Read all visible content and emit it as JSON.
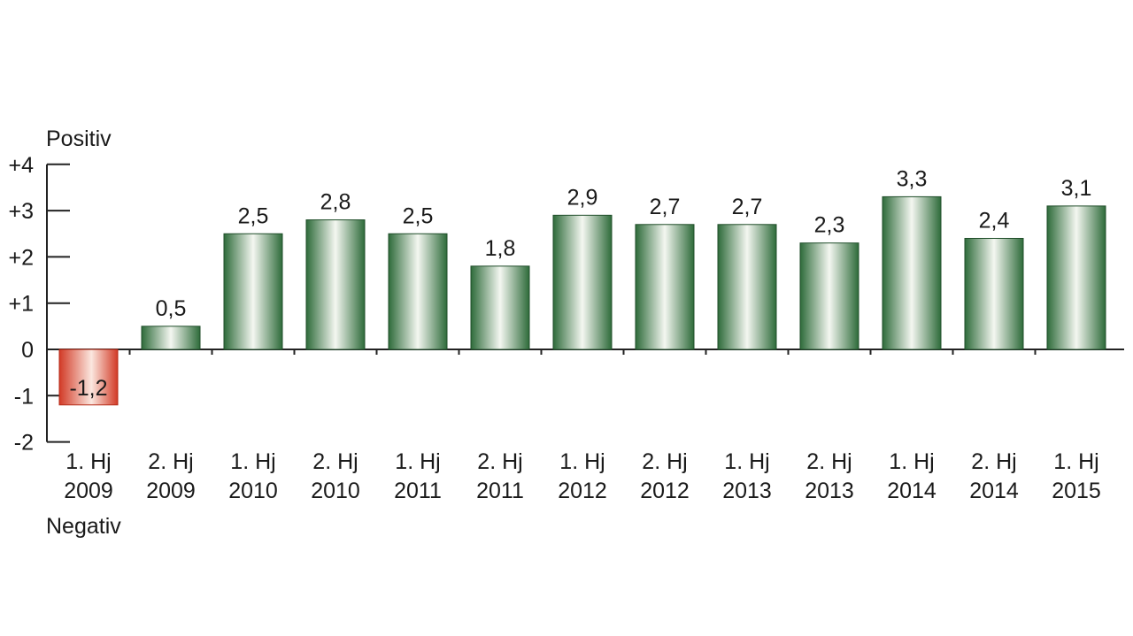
{
  "chart_data": {
    "type": "bar",
    "title": "",
    "xlabel": "",
    "ylabel_top": "Positiv",
    "ylabel_bottom": "Negativ",
    "ylim": [
      -2,
      4
    ],
    "yticks": [
      4,
      3,
      2,
      1,
      0,
      -1,
      -2
    ],
    "ytick_labels": [
      "+4",
      "+3",
      "+2",
      "+1",
      "0",
      "-1",
      "-2"
    ],
    "categories": [
      [
        "1. Hj",
        "2009"
      ],
      [
        "2. Hj",
        "2009"
      ],
      [
        "1. Hj",
        "2010"
      ],
      [
        "2. Hj",
        "2010"
      ],
      [
        "1. Hj",
        "2011"
      ],
      [
        "2. Hj",
        "2011"
      ],
      [
        "1. Hj",
        "2012"
      ],
      [
        "2. Hj",
        "2012"
      ],
      [
        "1. Hj",
        "2013"
      ],
      [
        "2. Hj",
        "2013"
      ],
      [
        "1. Hj",
        "2014"
      ],
      [
        "2. Hj",
        "2014"
      ],
      [
        "1. Hj",
        "2015"
      ]
    ],
    "values": [
      -1.2,
      0.5,
      2.5,
      2.8,
      2.5,
      1.8,
      2.9,
      2.7,
      2.7,
      2.3,
      3.3,
      2.4,
      3.1
    ],
    "value_labels": [
      "-1,2",
      "0,5",
      "2,5",
      "2,8",
      "2,5",
      "1,8",
      "2,9",
      "2,7",
      "2,7",
      "2,3",
      "3,3",
      "2,4",
      "3,1"
    ],
    "colors": {
      "positive_dark": "#2e6b3a",
      "positive_light": "#f4f7f1",
      "negative_dark": "#d23a26",
      "negative_light": "#fbe7df",
      "axis": "#222222"
    },
    "grid": false,
    "legend": "none"
  }
}
